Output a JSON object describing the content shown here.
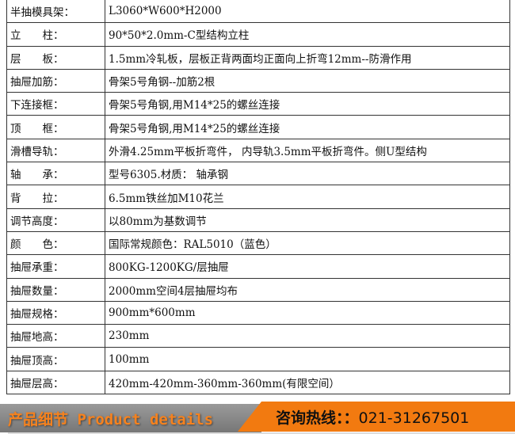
{
  "rows": [
    {
      "k": "半抽模具架：",
      "v": "L3060*W600*H2000"
    },
    {
      "k": "立　　柱：",
      "v": "90*50*2.0mm-C型结构立柱"
    },
    {
      "k": "层　　板：",
      "v": "1.5mm冷轧板，层板正背两面均正面向上折弯12mm--防滑作用"
    },
    {
      "k": "抽屉加筋：",
      "v": "骨架5号角钢--加筋2根"
    },
    {
      "k": "下连接框：",
      "v": "骨架5号角钢,用M14*25的螺丝连接"
    },
    {
      "k": "顶　　框：",
      "v": "骨架5号角钢,用M14*25的螺丝连接"
    },
    {
      "k": "滑槽导轨：",
      "v": "外滑4.25mm平板折弯件， 内导轨3.5mm平板折弯件。侧U型结构"
    },
    {
      "k": "轴　　承：",
      "v": "型号6305.材质： 轴承钢"
    },
    {
      "k": "背　　拉：",
      "v": "6.5mm铁丝加M10花兰"
    },
    {
      "k": "调节高度：",
      "v": "以80mm为基数调节"
    },
    {
      "k": "颜　　色：",
      "v": "国际常规颜色：RAL5010（蓝色）"
    },
    {
      "k": "抽屉承重：",
      "v": "800KG-1200KG/层抽屉"
    },
    {
      "k": "抽屉数量：",
      "v": "2000mm空间4层抽屉均布"
    },
    {
      "k": "抽屉规格：",
      "v": "900mm*600mm"
    },
    {
      "k": "抽屉地高：",
      "v": "230mm"
    },
    {
      "k": "抽屉顶高：",
      "v": "100mm"
    },
    {
      "k": "抽屉层高：",
      "v": "420mm-420mm-360mm-360mm(有限空间）"
    }
  ],
  "banner": {
    "title": "产品细节 Product details",
    "hotline_label": "咨询热线：：",
    "hotline": "021-31267501"
  },
  "colors": {
    "accent": "#f27a10",
    "gray": "#888888"
  }
}
